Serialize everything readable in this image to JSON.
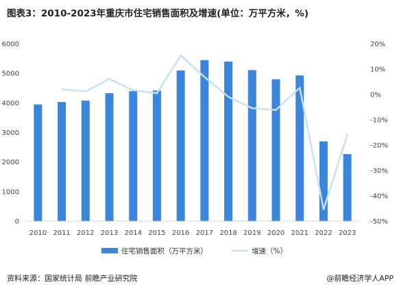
{
  "title": "图表3：2010-2023年重庆市住宅销售面积及增速(单位：万平方米，%)",
  "source": "资料来源：国家统计局 前瞻产业研究院",
  "credit": "@前瞻经济学人APP",
  "chart_data": {
    "type": "bar",
    "categories": [
      "2010",
      "2011",
      "2012",
      "2013",
      "2014",
      "2015",
      "2016",
      "2017",
      "2018",
      "2019",
      "2020",
      "2021",
      "2022",
      "2023"
    ],
    "series": [
      {
        "name": "住宅销售面积（万平方米）",
        "type": "bar",
        "axis": "left",
        "color": "#3b86dc",
        "values": [
          3950,
          4030,
          4080,
          4330,
          4400,
          4420,
          5100,
          5450,
          5400,
          5110,
          4800,
          4930,
          2700,
          2270
        ]
      },
      {
        "name": "增速（%）",
        "type": "line",
        "axis": "right",
        "color": "#c6e0f5",
        "values": [
          null,
          2.0,
          1.2,
          6.1,
          1.7,
          0.5,
          15.4,
          6.9,
          -0.9,
          -5.4,
          -6.1,
          2.7,
          -45.3,
          -15.9
        ]
      }
    ],
    "y_left": {
      "min": 0,
      "max": 6000,
      "ticks": [
        0,
        1000,
        2000,
        3000,
        4000,
        5000,
        6000
      ]
    },
    "y_right": {
      "min": -50,
      "max": 20,
      "ticks": [
        "-50%",
        "-40%",
        "-30%",
        "-20%",
        "-10%",
        "0%",
        "10%",
        "20%"
      ]
    },
    "grid": false,
    "legend_position": "bottom-center"
  }
}
